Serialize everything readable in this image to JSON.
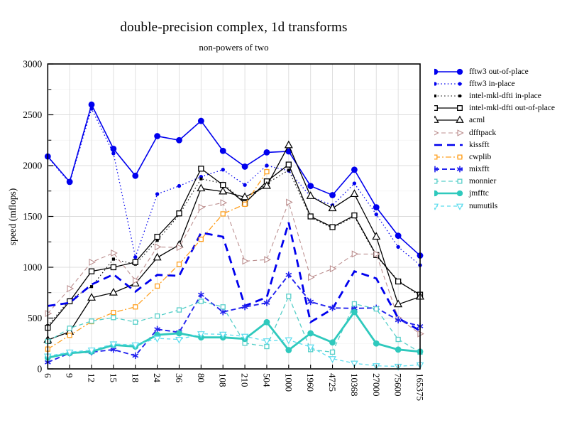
{
  "header": {
    "title": "double-precision complex, 1d transforms",
    "subtitle": "non-powers of two"
  },
  "chart_data": {
    "type": "line",
    "title": "double-precision complex, 1d transforms",
    "subtitle": "non-powers of two",
    "xlabel": "",
    "ylabel": "speed (mflops)",
    "ylim": [
      0,
      3000
    ],
    "ytick_interval": 500,
    "ytick_minor_interval": 250,
    "ytick_labels": [
      "0",
      "500",
      "1000",
      "1500",
      "2000",
      "2500",
      "3000"
    ],
    "grid": true,
    "legend_position": "right-outside",
    "categories": [
      "6",
      "9",
      "12",
      "15",
      "18",
      "24",
      "36",
      "80",
      "108",
      "210",
      "504",
      "1000",
      "1960",
      "4725",
      "10368",
      "27000",
      "75600",
      "165375"
    ],
    "series": [
      {
        "name": "fftw3 out-of-place",
        "color": "#0000ee",
        "dash": "",
        "width": 1.6,
        "marker": "circle",
        "marker_size": 4.4,
        "values": [
          2090,
          1840,
          2600,
          2165,
          1900,
          2290,
          2250,
          2440,
          2145,
          1990,
          2130,
          2140,
          1800,
          1710,
          1960,
          1590,
          1310,
          1115
        ]
      },
      {
        "name": "fftw3 in-place",
        "color": "#0000ee",
        "dash": "1.5 3.2",
        "width": 1.3,
        "marker": "circle",
        "marker_size": 2.7,
        "values": [
          2085,
          1830,
          2560,
          2120,
          1100,
          1720,
          1800,
          1890,
          1960,
          1810,
          2000,
          1950,
          1695,
          1610,
          1825,
          1520,
          1200,
          1020
        ]
      },
      {
        "name": "intel-mkl-dfti in-place",
        "color": "#000000",
        "dash": "1.5 3.2",
        "width": 1.1,
        "marker": "square",
        "marker_size": 4.2,
        "values": [
          425,
          680,
          810,
          1080,
          1030,
          1265,
          1515,
          1870,
          1825,
          1635,
          1825,
          1955,
          1490,
          1385,
          1500,
          1110,
          870,
          715
        ]
      },
      {
        "name": "intel-mkl-dfti out-of-place",
        "color": "#000000",
        "dash": "",
        "width": 1.3,
        "marker": "square-open",
        "marker_size": 7,
        "values": [
          405,
          665,
          960,
          1000,
          1050,
          1300,
          1530,
          1970,
          1810,
          1630,
          1845,
          2010,
          1500,
          1395,
          1510,
          1120,
          860,
          730
        ]
      },
      {
        "name": "acml",
        "color": "#000000",
        "dash": "",
        "width": 1.3,
        "marker": "triangle-open",
        "marker_size": 5.5,
        "values": [
          285,
          365,
          700,
          750,
          840,
          1095,
          1220,
          1775,
          1745,
          1690,
          1800,
          2200,
          1700,
          1580,
          1720,
          1300,
          635,
          710
        ]
      },
      {
        "name": "dfftpack",
        "color": "#bc8f8f",
        "dash": "6 4",
        "width": 1.1,
        "marker": "triangle-right-open",
        "marker_size": 4.8,
        "values": [
          545,
          790,
          1050,
          1140,
          870,
          1200,
          1195,
          1590,
          1635,
          1060,
          1075,
          1640,
          900,
          985,
          1130,
          1130,
          500,
          345
        ]
      },
      {
        "name": "kissfft",
        "color": "#0000ee",
        "dash": "11 7",
        "width": 2.8,
        "marker": "none",
        "marker_size": 0,
        "values": [
          620,
          650,
          830,
          930,
          760,
          925,
          915,
          1340,
          1300,
          620,
          705,
          1440,
          460,
          590,
          960,
          890,
          500,
          375
        ]
      },
      {
        "name": "cwplib",
        "color": "#ffa020",
        "dash": "8 3 2 3",
        "width": 1.3,
        "marker": "square-open",
        "marker_size": 6,
        "values": [
          195,
          330,
          465,
          555,
          610,
          815,
          1030,
          1275,
          1525,
          1620,
          1940,
          null,
          null,
          null,
          null,
          null,
          null,
          null
        ]
      },
      {
        "name": "mixfft",
        "color": "#2222ee",
        "dash": "7 4",
        "width": 1.9,
        "marker": "asterisk",
        "marker_size": 4.6,
        "values": [
          65,
          155,
          165,
          190,
          130,
          390,
          360,
          730,
          560,
          610,
          650,
          925,
          660,
          600,
          595,
          600,
          480,
          420
        ]
      },
      {
        "name": "monnier",
        "color": "#57cfc9",
        "dash": "6 4",
        "width": 1.3,
        "marker": "square-open",
        "marker_size": 6,
        "values": [
          270,
          400,
          470,
          505,
          460,
          520,
          580,
          665,
          610,
          253,
          220,
          715,
          190,
          165,
          640,
          590,
          290,
          165
        ]
      },
      {
        "name": "jmfftc",
        "color": "#2fc9bd",
        "dash": "",
        "width": 2.8,
        "marker": "circle",
        "marker_size": 4.4,
        "values": [
          110,
          155,
          170,
          235,
          220,
          335,
          350,
          310,
          310,
          295,
          460,
          185,
          350,
          260,
          560,
          250,
          190,
          170
        ]
      },
      {
        "name": "numutils",
        "color": "#5bdcee",
        "dash": "5 4",
        "width": 1.3,
        "marker": "triangle-down-open",
        "marker_size": 4.8,
        "values": [
          125,
          165,
          185,
          245,
          235,
          300,
          290,
          345,
          340,
          320,
          275,
          285,
          215,
          100,
          55,
          30,
          25,
          40
        ]
      }
    ]
  }
}
